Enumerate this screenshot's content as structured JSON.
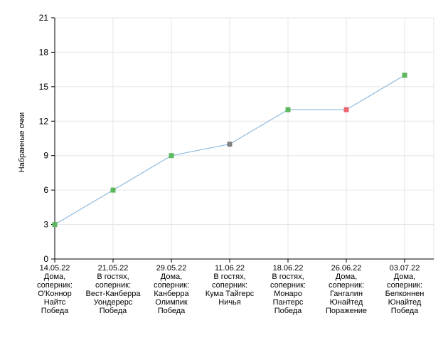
{
  "chart_data": {
    "type": "line",
    "title": "",
    "xlabel": "",
    "ylabel": "Набранные очки",
    "ylim": [
      0,
      21
    ],
    "yticks": [
      0,
      3,
      6,
      9,
      12,
      15,
      18,
      21
    ],
    "grid": true,
    "legend": "none",
    "categories": [
      [
        "14.05.22",
        "Дома,",
        "соперник:",
        "О'Коннор",
        "Найтс",
        "Победа"
      ],
      [
        "21.05.22",
        "В гостях,",
        "соперник:",
        "Вест-Канберра",
        "Уондерерс",
        "Победа"
      ],
      [
        "29.05.22",
        "Дома,",
        "соперник:",
        "Канберра",
        "Олимпик",
        "Победа"
      ],
      [
        "11.06.22",
        "В гостях,",
        "соперник:",
        "Кума Тайгерс",
        "Ничья"
      ],
      [
        "18.06.22",
        "В гостях,",
        "соперник:",
        "Монаро",
        "Пантерс",
        "Победа"
      ],
      [
        "26.06.22",
        "Дома,",
        "соперник:",
        "Гангалин",
        "Юнайтед",
        "Поражение"
      ],
      [
        "03.07.22",
        "Дома,",
        "соперник:",
        "Белконнен",
        "Юнайтед",
        "Победа"
      ]
    ],
    "values": [
      3,
      6,
      9,
      10,
      13,
      13,
      16
    ],
    "results": [
      "win",
      "win",
      "win",
      "draw",
      "win",
      "loss",
      "win"
    ],
    "colors": {
      "line": "#7aaedb",
      "win": "#5cb85c",
      "draw": "#808080",
      "loss": "#f0646e",
      "grid": "#e6e6e6",
      "axis": "#000000"
    }
  }
}
